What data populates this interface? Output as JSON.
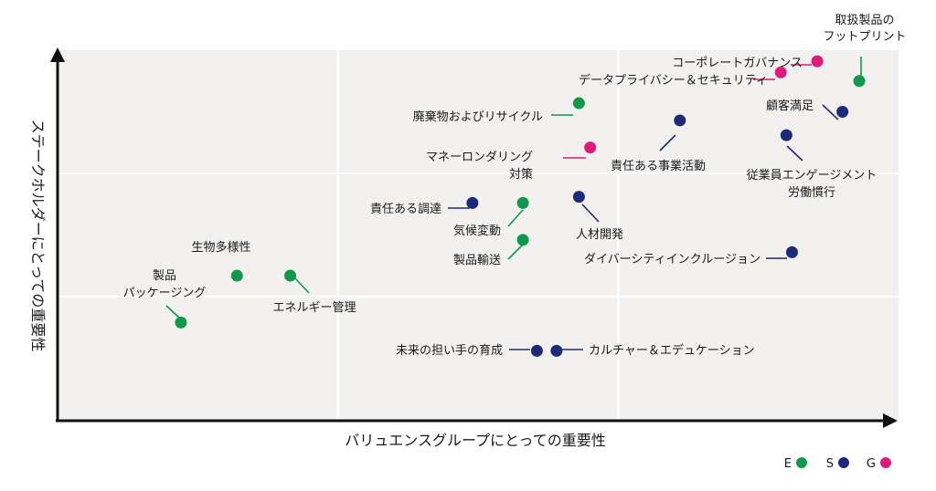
{
  "colors": {
    "E": "#12984a",
    "S": "#1d2a7a",
    "G": "#e0197a"
  },
  "chart_data": {
    "type": "scatter",
    "xlabel": "バリュエンスグループにとっての重要性",
    "ylabel": "ステークホルダーにとっての重要性",
    "xlim": [
      0,
      3
    ],
    "ylim": [
      0,
      3
    ],
    "grid": true,
    "legend": {
      "position": "bottom-right",
      "entries": [
        {
          "name": "E",
          "color": "#12984a"
        },
        {
          "name": "S",
          "color": "#1d2a7a"
        },
        {
          "name": "G",
          "color": "#e0197a"
        }
      ]
    },
    "points": [
      {
        "label": "取扱製品のフットプリント",
        "lines": [
          "取扱製品の",
          "フットプリント"
        ],
        "category": "E",
        "x": 2.86,
        "y": 2.75
      },
      {
        "label": "コーポレートガバナンス",
        "lines": [
          "コーポレートガバナンス"
        ],
        "category": "G",
        "x": 2.71,
        "y": 2.91
      },
      {
        "label": "データプライバシー＆セキュリティ",
        "lines": [
          "データプライバシー＆セキュリティ"
        ],
        "category": "G",
        "x": 2.58,
        "y": 2.82
      },
      {
        "label": "顧客満足",
        "lines": [
          "顧客満足"
        ],
        "category": "S",
        "x": 2.8,
        "y": 2.5
      },
      {
        "label": "廃棄物およびリサイクル",
        "lines": [
          "廃棄物およびリサイクル"
        ],
        "category": "E",
        "x": 1.86,
        "y": 2.57
      },
      {
        "label": "責任ある事業活動",
        "lines": [
          "責任ある事業活動"
        ],
        "category": "S",
        "x": 2.22,
        "y": 2.43
      },
      {
        "label": "従業員エンゲージメント労働慣行",
        "lines": [
          "従業員エンゲージメント",
          "労働慣行"
        ],
        "category": "S",
        "x": 2.6,
        "y": 2.31
      },
      {
        "label": "マネーロンダリング対策",
        "lines": [
          "マネーロンダリング",
          "対策"
        ],
        "category": "G",
        "x": 1.9,
        "y": 2.21
      },
      {
        "label": "責任ある調達",
        "lines": [
          "責任ある調達"
        ],
        "category": "S",
        "x": 1.48,
        "y": 1.76
      },
      {
        "label": "気候変動",
        "lines": [
          "気候変動"
        ],
        "category": "E",
        "x": 1.66,
        "y": 1.76
      },
      {
        "label": "人材開発",
        "lines": [
          "人材開発"
        ],
        "category": "S",
        "x": 1.86,
        "y": 1.81
      },
      {
        "label": "製品輸送",
        "lines": [
          "製品輸送"
        ],
        "category": "E",
        "x": 1.66,
        "y": 1.46
      },
      {
        "label": "ダイバーシティインクルージョン",
        "lines": [
          "ダイバーシティインクルージョン"
        ],
        "category": "S",
        "x": 2.62,
        "y": 1.36
      },
      {
        "label": "生物多様性",
        "lines": [
          "生物多様性"
        ],
        "category": "E",
        "x": 0.64,
        "y": 1.17
      },
      {
        "label": "エネルギー管理",
        "lines": [
          "エネルギー管理"
        ],
        "category": "E",
        "x": 0.83,
        "y": 1.17
      },
      {
        "label": "製品パッケージング",
        "lines": [
          "製品",
          "パッケージング"
        ],
        "category": "E",
        "x": 0.44,
        "y": 0.79
      },
      {
        "label": "未来の担い手の育成",
        "lines": [
          "未来の担い手の育成"
        ],
        "category": "S",
        "x": 1.71,
        "y": 0.56
      },
      {
        "label": "カルチャー＆エデュケーション",
        "lines": [
          "カルチャー＆エデュケーション"
        ],
        "category": "S",
        "x": 1.78,
        "y": 0.56
      }
    ]
  }
}
